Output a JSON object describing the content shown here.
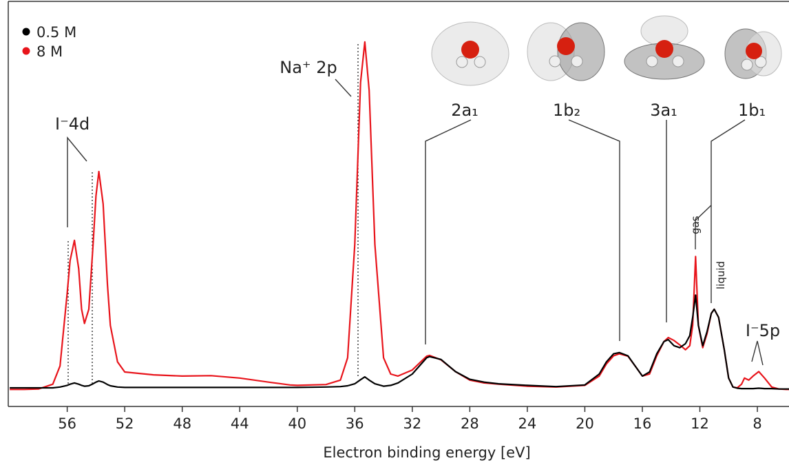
{
  "chart_data": {
    "type": "line",
    "xlabel": "Electron binding energy [eV]",
    "x": [
      60,
      59,
      58,
      57,
      56.5,
      56,
      55.8,
      55.5,
      55.2,
      55,
      54.8,
      54.5,
      54.2,
      54,
      53.8,
      53.5,
      53.2,
      53,
      52.5,
      52,
      50,
      48,
      46,
      44,
      42,
      40.5,
      40,
      38,
      37,
      36.5,
      36,
      35.6,
      35.3,
      35,
      34.6,
      34,
      33.5,
      33,
      32,
      31,
      30.8,
      30,
      29,
      28,
      27,
      26,
      24,
      22,
      20,
      19,
      18.5,
      18,
      17.6,
      17,
      16.5,
      16,
      15.5,
      15,
      14.5,
      14.2,
      13.8,
      13.4,
      13,
      12.7,
      12.5,
      12.3,
      12.1,
      11.8,
      11.5,
      11.2,
      11,
      10.7,
      10.3,
      10,
      9.7,
      9.4,
      9.1,
      8.9,
      8.6,
      8.3,
      7.9,
      7.5,
      7,
      6.5,
      6,
      5.8
    ],
    "series": [
      {
        "name": "8 M",
        "color": "#e8141b",
        "values": [
          4.2,
          4.2,
          4.3,
          5.5,
          10,
          28,
          36,
          41,
          34,
          24,
          20.5,
          24,
          40,
          52,
          58,
          50,
          30,
          20,
          11,
          8.5,
          7.8,
          7.5,
          7.6,
          7.0,
          6.0,
          5.3,
          5.2,
          5.4,
          6.5,
          12,
          40,
          80,
          90,
          78,
          40,
          12,
          8,
          7.5,
          9,
          12.4,
          12.6,
          11.5,
          8.6,
          6.5,
          5.8,
          5.5,
          5.0,
          4.8,
          5.2,
          7.5,
          10.5,
          12.5,
          13.0,
          12.4,
          10,
          7.5,
          8,
          12.5,
          16,
          17,
          16.3,
          15.2,
          14,
          15,
          20,
          37,
          20,
          14.5,
          18,
          23,
          24,
          22,
          14,
          7,
          4.8,
          4.6,
          5.5,
          7,
          6.5,
          7.5,
          8.6,
          7,
          4.8,
          4.3,
          4.2,
          4.2
        ]
      },
      {
        "name": "0.5 M",
        "color": "#000000",
        "values": [
          4.6,
          4.6,
          4.6,
          4.6,
          4.8,
          5.2,
          5.5,
          5.8,
          5.5,
          5.2,
          5.0,
          5.1,
          5.6,
          6.0,
          6.3,
          6.0,
          5.4,
          5.1,
          4.8,
          4.7,
          4.7,
          4.7,
          4.7,
          4.7,
          4.7,
          4.7,
          4.7,
          4.8,
          4.9,
          5.1,
          5.6,
          6.6,
          7.3,
          6.5,
          5.6,
          5.0,
          5.2,
          5.8,
          8,
          12,
          12.3,
          11.6,
          8.6,
          6.7,
          6.0,
          5.6,
          5.2,
          4.9,
          5.3,
          8,
          11,
          13,
          13.3,
          12.5,
          10,
          7.5,
          8.5,
          13,
          16,
          16.5,
          15,
          14.5,
          15.5,
          17.5,
          22,
          27.5,
          20,
          15,
          18.5,
          23,
          24,
          22,
          14,
          7,
          4.8,
          4.5,
          4.4,
          4.4,
          4.4,
          4.4,
          4.5,
          4.4,
          4.4,
          4.3,
          4.3,
          4.3
        ]
      }
    ],
    "legend_order": [
      1,
      0
    ],
    "xlim": [
      60.1,
      5.8
    ],
    "xticks": [
      56,
      52,
      48,
      44,
      40,
      36,
      32,
      28,
      24,
      20,
      16,
      12,
      8
    ],
    "ylim": [
      0,
      100
    ],
    "annotations": [
      {
        "text": "I⁻4d"
      },
      {
        "text": "Na⁺ 2p"
      },
      {
        "text": "2a₁"
      },
      {
        "text": "1b₂"
      },
      {
        "text": "3a₁"
      },
      {
        "text": "1b₁"
      },
      {
        "text": "gas"
      },
      {
        "text": "liquid"
      },
      {
        "text": "I⁻5p"
      }
    ]
  }
}
